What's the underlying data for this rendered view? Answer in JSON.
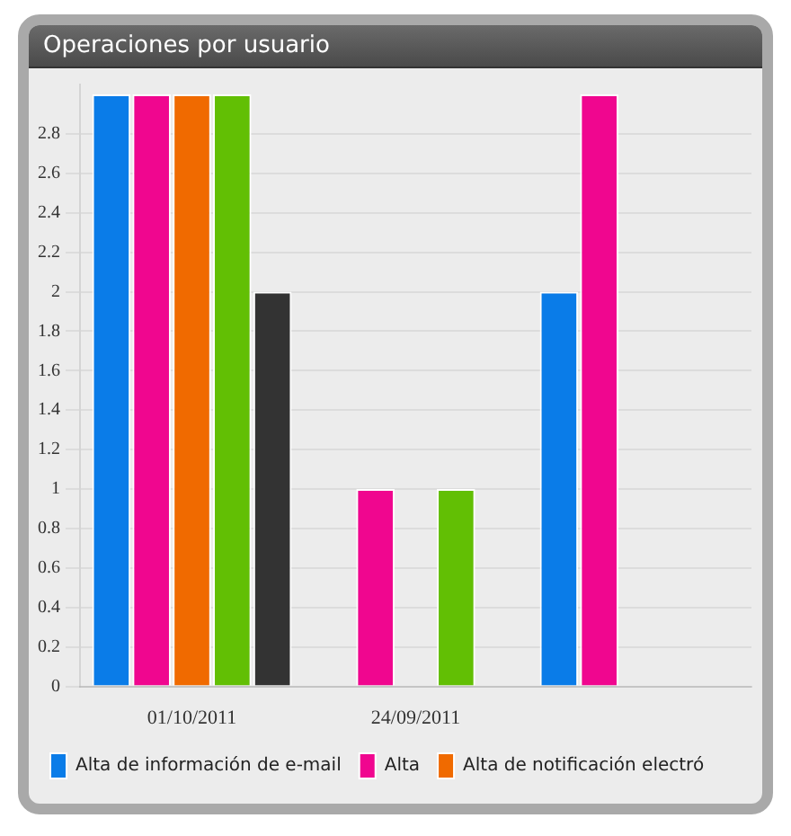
{
  "chart_data": {
    "type": "bar",
    "title": "Operaciones por usuario",
    "categories": [
      "01/10/2011",
      "24/09/2011",
      null
    ],
    "series": [
      {
        "name": "Alta de información de e-mail",
        "color": "#0a7ce8",
        "values": [
          3,
          null,
          2
        ]
      },
      {
        "name": "Alta",
        "color": "#f0068f",
        "values": [
          3,
          1,
          3
        ]
      },
      {
        "name": "Alta de notificación electró",
        "color": "#f06a00",
        "values": [
          3,
          null,
          null
        ]
      },
      {
        "color": "#62bf04",
        "values": [
          3,
          1,
          null
        ]
      },
      {
        "color": "#333333",
        "values": [
          2,
          null,
          null
        ]
      }
    ],
    "ylim": [
      0,
      3.05
    ],
    "yticks": [
      0,
      0.2,
      0.4,
      0.6,
      0.8,
      1,
      1.2,
      1.4,
      1.6,
      1.8,
      2,
      2.2,
      2.4,
      2.6,
      2.8
    ],
    "grid": "y",
    "legend": "bottom"
  }
}
